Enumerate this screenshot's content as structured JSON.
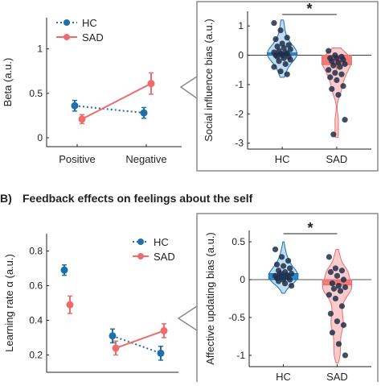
{
  "colors": {
    "hc": "#1f6fad",
    "sad": "#ee6b6b",
    "hc_fill": "#b9d8ee",
    "sad_fill": "#f7c6c6",
    "hc_bar": "#2f86c6",
    "sad_bar": "#f07b7b",
    "panel_border": "#8a8a8a",
    "dot": "#1e2e4a"
  },
  "section_b": {
    "letter": "B)",
    "title": "Feedback effects on feelings about the self"
  },
  "significance_marker": "*",
  "chart_data": [
    {
      "id": "beta-line",
      "type": "line",
      "ylabel": "Beta (a.u.)",
      "categories": [
        "Positive",
        "Negative"
      ],
      "ylim": [
        -0.1,
        1.35
      ],
      "yticks": [
        "0",
        "0.5",
        "1"
      ],
      "ytick_values": [
        0,
        0.5,
        1
      ],
      "legend": [
        "HC",
        "SAD"
      ],
      "legend_position": "top-left",
      "series": [
        {
          "name": "HC",
          "style": "dotted",
          "values": [
            0.36,
            0.28
          ],
          "errors": [
            0.06,
            0.06
          ]
        },
        {
          "name": "SAD",
          "style": "solid",
          "values": [
            0.21,
            0.61
          ],
          "errors": [
            0.05,
            0.12
          ]
        }
      ]
    },
    {
      "id": "social-influence-violin",
      "type": "violin",
      "ylabel": "Social influence bias (a.u.)",
      "categories": [
        "HC",
        "SAD"
      ],
      "ylim": [
        -3.2,
        1.5
      ],
      "yticks": [
        "-3",
        "-2",
        "-1",
        "0",
        "1"
      ],
      "ytick_values": [
        -3,
        -2,
        -1,
        0,
        1
      ],
      "bar_values": [
        0.08,
        -0.32
      ],
      "bar_errors": [
        0.07,
        0.18
      ],
      "points": [
        [
          1.1,
          0.85,
          0.6,
          0.55,
          0.4,
          0.35,
          0.3,
          0.25,
          0.2,
          0.15,
          0.1,
          0.1,
          0.05,
          0.05,
          0.0,
          0.0,
          -0.05,
          -0.05,
          -0.1,
          -0.15,
          -0.2,
          -0.3,
          -0.4,
          -0.55,
          -0.65
        ],
        [
          0.15,
          0.0,
          -0.05,
          -0.1,
          -0.1,
          -0.15,
          -0.2,
          -0.25,
          -0.3,
          -0.35,
          -0.4,
          -0.5,
          -0.6,
          -0.65,
          -0.75,
          -0.85,
          -1.05,
          -1.15,
          -1.35,
          -2.2,
          -2.7
        ]
      ],
      "significance": "*"
    },
    {
      "id": "learning-rate",
      "type": "scatter",
      "ylabel": "Learning rate α (a.u.)",
      "ylim": [
        0.1,
        0.9
      ],
      "yticks": [
        "0.2",
        "0.4",
        "0.6",
        "0.8"
      ],
      "ytick_values": [
        0.2,
        0.4,
        0.6,
        0.8
      ],
      "legend": [
        "HC",
        "SAD"
      ],
      "legend_position": "top-right",
      "series": [
        {
          "name": "HC",
          "standalone": 0.69,
          "standalone_err": 0.03,
          "pair": [
            0.31,
            0.21
          ],
          "pair_err": [
            0.04,
            0.04
          ]
        },
        {
          "name": "SAD",
          "standalone": 0.49,
          "standalone_err": 0.05,
          "pair": [
            0.24,
            0.34
          ],
          "pair_err": [
            0.04,
            0.04
          ]
        }
      ]
    },
    {
      "id": "affective-updating-violin",
      "type": "violin",
      "ylabel": "Affective updating bias (a.u.)",
      "categories": [
        "HC",
        "SAD"
      ],
      "ylim": [
        -1.15,
        0.65
      ],
      "yticks": [
        "-1",
        "-0.5",
        "0",
        "0.5"
      ],
      "ytick_values": [
        -1,
        -0.5,
        0,
        0.5
      ],
      "bar_values": [
        0.08,
        -0.07
      ],
      "bar_errors": [
        0.03,
        0.06
      ],
      "points": [
        [
          0.4,
          0.3,
          0.25,
          0.2,
          0.18,
          0.15,
          0.12,
          0.1,
          0.08,
          0.08,
          0.06,
          0.05,
          0.04,
          0.03,
          0.02,
          0.0,
          0.0,
          -0.02,
          -0.05,
          -0.08
        ],
        [
          0.3,
          0.15,
          0.12,
          0.1,
          0.05,
          0.0,
          -0.05,
          -0.08,
          -0.1,
          -0.12,
          -0.15,
          -0.2,
          -0.25,
          -0.35,
          -0.45,
          -0.55,
          -0.6,
          -0.7,
          -0.85,
          -1.0
        ]
      ],
      "significance": "*"
    }
  ]
}
